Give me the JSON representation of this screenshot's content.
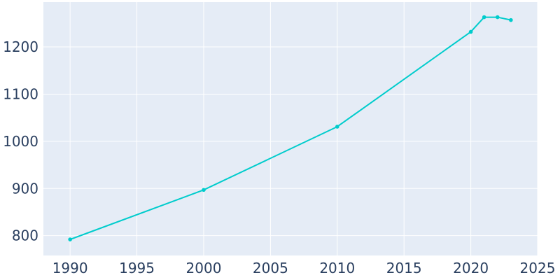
{
  "chart_data": {
    "type": "line",
    "title": "",
    "xlabel": "",
    "ylabel": "",
    "xlim": [
      1988,
      2025
    ],
    "ylim": [
      758,
      1295
    ],
    "x_ticks": [
      1990,
      1995,
      2000,
      2005,
      2010,
      2015,
      2020,
      2025
    ],
    "y_ticks": [
      800,
      900,
      1000,
      1100,
      1200
    ],
    "grid": true,
    "colors": {
      "plot_background": "#e5ecf6",
      "grid": "#ffffff",
      "line": "#00cccc",
      "tick_text": "#2a3f5f"
    },
    "series": [
      {
        "x": [
          1990,
          2000,
          2010,
          2020,
          2021,
          2022,
          2023
        ],
        "y": [
          792,
          897,
          1031,
          1232,
          1263,
          1263,
          1257
        ]
      }
    ]
  }
}
